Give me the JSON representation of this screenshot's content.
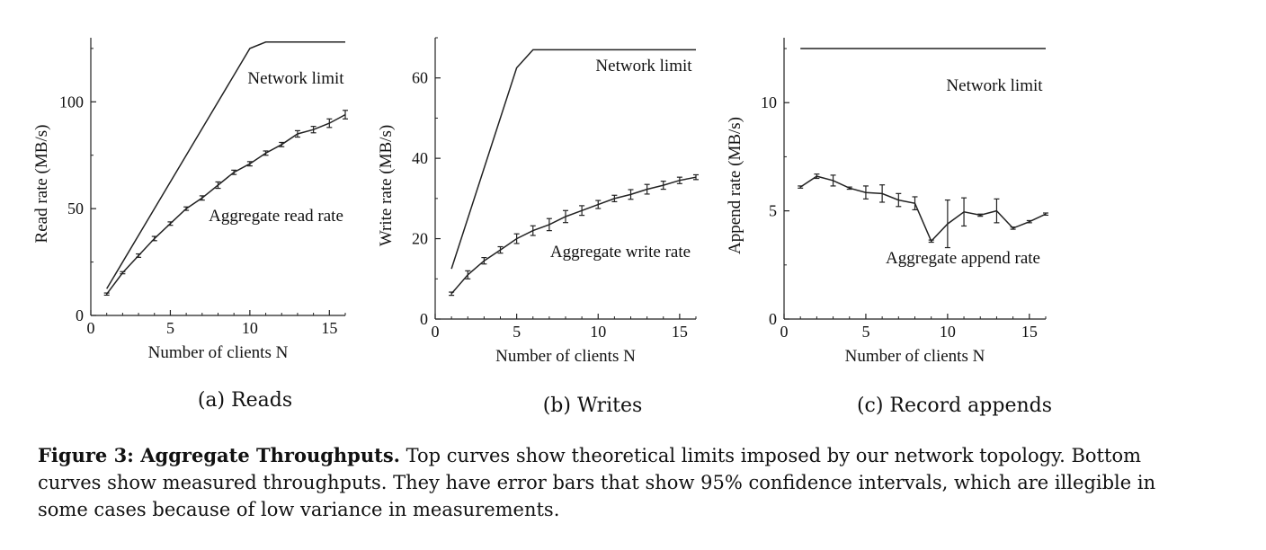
{
  "figure": {
    "caption_label": "Figure 3: Aggregate Throughputs.",
    "caption_text": "Top curves show theoretical limits imposed by our network topology. Bottom curves show measured throughputs. They have error bars that show 95% confidence intervals, which are illegible in some cases because of low variance in measurements."
  },
  "chart_data": [
    {
      "type": "line",
      "subcaption": "(a) Reads",
      "xlabel": "Number of clients N",
      "ylabel": "Read rate (MB/s)",
      "xlim": [
        0,
        16
      ],
      "ylim": [
        0,
        130
      ],
      "xticks": [
        0,
        5,
        10,
        15
      ],
      "yticks": [
        0,
        50,
        100
      ],
      "series": [
        {
          "name": "Network limit",
          "x": [
            1,
            10,
            11,
            16
          ],
          "y": [
            12.5,
            125,
            128,
            128
          ]
        },
        {
          "name": "Aggregate read rate",
          "x": [
            1,
            2,
            3,
            4,
            5,
            6,
            7,
            8,
            9,
            10,
            11,
            12,
            13,
            14,
            15,
            16
          ],
          "y": [
            10,
            20,
            28,
            36,
            43,
            50,
            55,
            61,
            67,
            71,
            76,
            80,
            85,
            87,
            90,
            94
          ],
          "err": [
            0.5,
            0.5,
            0.8,
            1,
            0.8,
            0.8,
            1,
            1.5,
            1,
            1,
            1,
            1,
            1.5,
            1.5,
            2,
            2
          ]
        }
      ]
    },
    {
      "type": "line",
      "subcaption": "(b) Writes",
      "xlabel": "Number of clients N",
      "ylabel": "Write rate (MB/s)",
      "xlim": [
        0,
        16
      ],
      "ylim": [
        0,
        70
      ],
      "xticks": [
        0,
        5,
        10,
        15
      ],
      "yticks": [
        0,
        20,
        40,
        60
      ],
      "series": [
        {
          "name": "Network limit",
          "x": [
            1,
            5,
            6,
            16
          ],
          "y": [
            12.5,
            62.5,
            67,
            67
          ]
        },
        {
          "name": "Aggregate write rate",
          "x": [
            1,
            2,
            3,
            4,
            5,
            6,
            7,
            8,
            9,
            10,
            11,
            12,
            13,
            14,
            15,
            16
          ],
          "y": [
            6.3,
            11,
            14.5,
            17.2,
            20,
            22,
            23.5,
            25.5,
            27,
            28.5,
            30,
            31,
            32.3,
            33.3,
            34.5,
            35.3
          ],
          "err": [
            0.4,
            1,
            0.8,
            0.8,
            1.2,
            1.2,
            1.5,
            1.5,
            1.2,
            1,
            0.8,
            1.2,
            1.2,
            1,
            0.8,
            0.6
          ]
        }
      ]
    },
    {
      "type": "line",
      "subcaption": "(c) Record appends",
      "xlabel": "Number of clients N",
      "ylabel": "Append rate (MB/s)",
      "xlim": [
        0,
        16
      ],
      "ylim": [
        0,
        13
      ],
      "xticks": [
        0,
        5,
        10,
        15
      ],
      "yticks": [
        0,
        5,
        10
      ],
      "series": [
        {
          "name": "Network limit",
          "x": [
            1,
            16
          ],
          "y": [
            12.5,
            12.5
          ]
        },
        {
          "name": "Aggregate append rate",
          "x": [
            1,
            2,
            3,
            4,
            5,
            6,
            7,
            8,
            9,
            10,
            11,
            12,
            13,
            14,
            15,
            16
          ],
          "y": [
            6.1,
            6.6,
            6.4,
            6.05,
            5.85,
            5.8,
            5.5,
            5.35,
            3.6,
            4.4,
            4.95,
            4.8,
            5.0,
            4.2,
            4.5,
            4.85
          ],
          "err": [
            0.05,
            0.1,
            0.25,
            0.05,
            0.3,
            0.4,
            0.3,
            0.3,
            0.05,
            1.1,
            0.65,
            0.05,
            0.55,
            0.05,
            0.05,
            0.05
          ]
        }
      ]
    }
  ]
}
